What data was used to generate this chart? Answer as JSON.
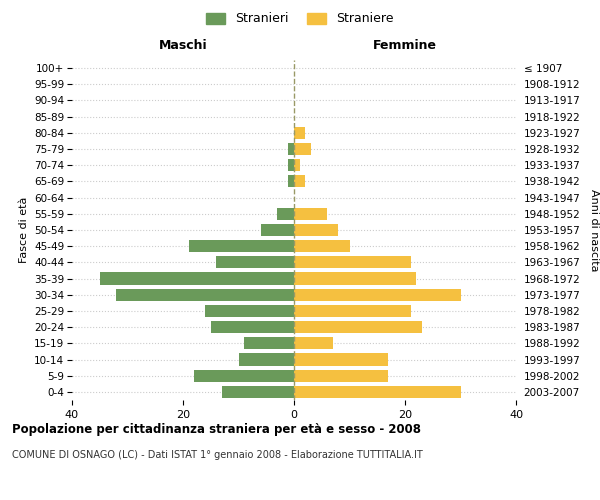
{
  "age_groups": [
    "0-4",
    "5-9",
    "10-14",
    "15-19",
    "20-24",
    "25-29",
    "30-34",
    "35-39",
    "40-44",
    "45-49",
    "50-54",
    "55-59",
    "60-64",
    "65-69",
    "70-74",
    "75-79",
    "80-84",
    "85-89",
    "90-94",
    "95-99",
    "100+"
  ],
  "birth_years": [
    "2003-2007",
    "1998-2002",
    "1993-1997",
    "1988-1992",
    "1983-1987",
    "1978-1982",
    "1973-1977",
    "1968-1972",
    "1963-1967",
    "1958-1962",
    "1953-1957",
    "1948-1952",
    "1943-1947",
    "1938-1942",
    "1933-1937",
    "1928-1932",
    "1923-1927",
    "1918-1922",
    "1913-1917",
    "1908-1912",
    "≤ 1907"
  ],
  "maschi": [
    13,
    18,
    10,
    9,
    15,
    16,
    32,
    35,
    14,
    19,
    6,
    3,
    0,
    1,
    1,
    1,
    0,
    0,
    0,
    0,
    0
  ],
  "femmine": [
    30,
    17,
    17,
    7,
    23,
    21,
    30,
    22,
    21,
    10,
    8,
    6,
    0,
    2,
    1,
    3,
    2,
    0,
    0,
    0,
    0
  ],
  "color_maschi": "#6a9a5a",
  "color_femmine": "#f5c040",
  "title": "Popolazione per cittadinanza straniera per età e sesso - 2008",
  "subtitle": "COMUNE DI OSNAGO (LC) - Dati ISTAT 1° gennaio 2008 - Elaborazione TUTTITALIA.IT",
  "xlabel_left": "Maschi",
  "xlabel_right": "Femmine",
  "ylabel_left": "Fasce di età",
  "ylabel_right": "Anni di nascita",
  "legend_maschi": "Stranieri",
  "legend_femmine": "Straniere",
  "xlim": 40,
  "bg_color": "#ffffff",
  "grid_color": "#cccccc"
}
